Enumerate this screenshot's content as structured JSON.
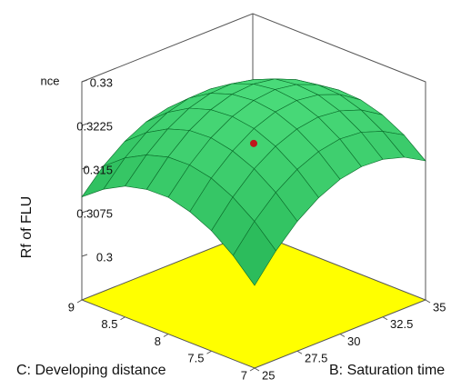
{
  "chart_data": {
    "type": "surface",
    "zlabel": "Rf of FLU",
    "annotation": "nce",
    "xlabel": "B: Saturation time",
    "ylabel": "C: Developing distance",
    "x": [
      25,
      26.25,
      27.5,
      28.75,
      30,
      31.25,
      32.5,
      33.75,
      35
    ],
    "y": [
      7,
      7.25,
      7.5,
      7.75,
      8,
      8.25,
      8.5,
      8.75,
      9
    ],
    "z": [
      [
        0.3067,
        0.3112,
        0.3148,
        0.3174,
        0.3191,
        0.3198,
        0.3196,
        0.3185,
        0.3164
      ],
      [
        0.3104,
        0.3148,
        0.3183,
        0.3208,
        0.3224,
        0.3231,
        0.3228,
        0.3215,
        0.3194
      ],
      [
        0.3132,
        0.3175,
        0.3209,
        0.3233,
        0.3248,
        0.3254,
        0.325,
        0.3237,
        0.3214
      ],
      [
        0.315,
        0.3193,
        0.3225,
        0.3249,
        0.3263,
        0.3268,
        0.3263,
        0.3249,
        0.3225
      ],
      [
        0.316,
        0.3201,
        0.3233,
        0.3255,
        0.3268,
        0.3272,
        0.3266,
        0.3251,
        0.3227
      ],
      [
        0.3159,
        0.32,
        0.3231,
        0.3252,
        0.3264,
        0.3267,
        0.3261,
        0.3245,
        0.3219
      ],
      [
        0.315,
        0.3189,
        0.3219,
        0.324,
        0.3251,
        0.3253,
        0.3245,
        0.3229,
        0.3202
      ],
      [
        0.313,
        0.3169,
        0.3198,
        0.3218,
        0.3228,
        0.3229,
        0.3221,
        0.3203,
        0.3176
      ],
      [
        0.3102,
        0.314,
        0.3168,
        0.3187,
        0.3196,
        0.3196,
        0.3187,
        0.3168,
        0.314
      ]
    ],
    "xlim": [
      25,
      35
    ],
    "xticks": [
      25,
      27.5,
      30,
      32.5,
      35
    ],
    "ylim": [
      7,
      9
    ],
    "yticks": [
      7,
      7.5,
      8,
      8.5,
      9
    ],
    "zlim": [
      0.2925,
      0.33
    ],
    "zticks": [
      0.3,
      0.3075,
      0.315,
      0.3225,
      0.33
    ],
    "surface_colors": [
      "#0b9a3a",
      "#4fe07f"
    ],
    "mesh_color": "#0a6b2a",
    "floor_color": "#ffff00",
    "points": [
      {
        "x": 30,
        "y": 8,
        "z": 0.3194,
        "color": "#c0161c"
      }
    ]
  }
}
